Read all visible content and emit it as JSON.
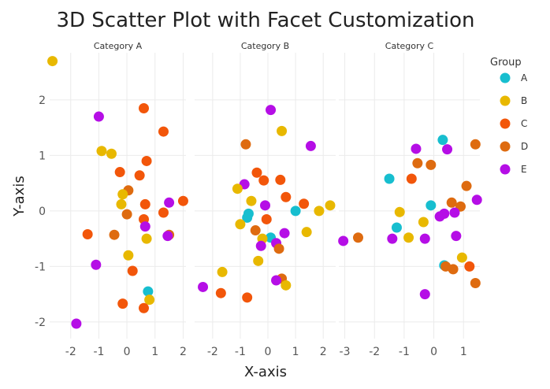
{
  "chart_data": {
    "type": "scatter",
    "title": "3D Scatter Plot with Facet Customization",
    "xlabel": "X-axis",
    "ylabel": "Y-axis",
    "grid": true,
    "legend": {
      "title": "Group",
      "placement": "right"
    },
    "ylim": [
      -2.3,
      2.85
    ],
    "y_ticks": [
      -2,
      -1,
      0,
      1,
      2
    ],
    "colors": {
      "A": "#17becf",
      "B": "#e8b800",
      "C": "#f2560a",
      "D": "#de6b10",
      "E": "#b50ee6"
    },
    "groups": [
      "A",
      "B",
      "C",
      "D",
      "E"
    ],
    "facets": [
      {
        "label": "Category A",
        "xlim": [
          -2.75,
          2.1
        ],
        "x_ticks": [
          -2,
          -1,
          0,
          1,
          2
        ],
        "points": [
          {
            "group": "B",
            "x": -2.65,
            "y": 2.7
          },
          {
            "group": "E",
            "x": -1.0,
            "y": 1.7
          },
          {
            "group": "B",
            "x": -0.9,
            "y": 1.08
          },
          {
            "group": "B",
            "x": -0.55,
            "y": 1.03
          },
          {
            "group": "C",
            "x": 0.6,
            "y": 1.85
          },
          {
            "group": "C",
            "x": 1.3,
            "y": 1.43
          },
          {
            "group": "C",
            "x": 0.7,
            "y": 0.9
          },
          {
            "group": "C",
            "x": -0.25,
            "y": 0.7
          },
          {
            "group": "C",
            "x": 0.45,
            "y": 0.64
          },
          {
            "group": "D",
            "x": 0.05,
            "y": 0.37
          },
          {
            "group": "B",
            "x": -0.15,
            "y": 0.3
          },
          {
            "group": "C",
            "x": 2.0,
            "y": 0.18
          },
          {
            "group": "E",
            "x": 1.5,
            "y": 0.15
          },
          {
            "group": "B",
            "x": -0.2,
            "y": 0.12
          },
          {
            "group": "C",
            "x": 0.65,
            "y": 0.12
          },
          {
            "group": "C",
            "x": 1.3,
            "y": -0.03
          },
          {
            "group": "D",
            "x": 0.0,
            "y": -0.06
          },
          {
            "group": "C",
            "x": 0.6,
            "y": -0.15
          },
          {
            "group": "E",
            "x": 0.65,
            "y": -0.28
          },
          {
            "group": "C",
            "x": -1.4,
            "y": -0.42
          },
          {
            "group": "D",
            "x": -0.45,
            "y": -0.43
          },
          {
            "group": "D",
            "x": 1.5,
            "y": -0.43
          },
          {
            "group": "E",
            "x": 1.45,
            "y": -0.45
          },
          {
            "group": "B",
            "x": 0.7,
            "y": -0.5
          },
          {
            "group": "B",
            "x": 0.05,
            "y": -0.8
          },
          {
            "group": "E",
            "x": -1.1,
            "y": -0.97
          },
          {
            "group": "C",
            "x": 0.2,
            "y": -1.08
          },
          {
            "group": "A",
            "x": 0.75,
            "y": -1.45
          },
          {
            "group": "B",
            "x": 0.8,
            "y": -1.6
          },
          {
            "group": "C",
            "x": -0.15,
            "y": -1.67
          },
          {
            "group": "C",
            "x": 0.6,
            "y": -1.75
          },
          {
            "group": "E",
            "x": -1.8,
            "y": -2.03
          }
        ]
      },
      {
        "label": "Category B",
        "xlim": [
          -2.65,
          2.45
        ],
        "x_ticks": [
          -2,
          -1,
          0,
          1,
          2
        ],
        "points": [
          {
            "group": "E",
            "x": 0.1,
            "y": 1.82
          },
          {
            "group": "B",
            "x": 0.5,
            "y": 1.44
          },
          {
            "group": "D",
            "x": -0.8,
            "y": 1.2
          },
          {
            "group": "E",
            "x": 1.55,
            "y": 1.17
          },
          {
            "group": "C",
            "x": -0.4,
            "y": 0.69
          },
          {
            "group": "C",
            "x": -0.15,
            "y": 0.55
          },
          {
            "group": "C",
            "x": 0.45,
            "y": 0.56
          },
          {
            "group": "E",
            "x": -0.85,
            "y": 0.48
          },
          {
            "group": "B",
            "x": -1.1,
            "y": 0.4
          },
          {
            "group": "C",
            "x": 0.65,
            "y": 0.25
          },
          {
            "group": "B",
            "x": -0.6,
            "y": 0.18
          },
          {
            "group": "C",
            "x": 1.3,
            "y": 0.13
          },
          {
            "group": "B",
            "x": 2.25,
            "y": 0.1
          },
          {
            "group": "E",
            "x": -0.1,
            "y": 0.1
          },
          {
            "group": "A",
            "x": 1.0,
            "y": 0.0
          },
          {
            "group": "B",
            "x": 1.85,
            "y": 0.0
          },
          {
            "group": "A",
            "x": -0.7,
            "y": -0.05
          },
          {
            "group": "A",
            "x": -0.75,
            "y": -0.12
          },
          {
            "group": "C",
            "x": -0.05,
            "y": -0.15
          },
          {
            "group": "B",
            "x": -1.0,
            "y": -0.24
          },
          {
            "group": "D",
            "x": -0.45,
            "y": -0.35
          },
          {
            "group": "B",
            "x": 1.4,
            "y": -0.38
          },
          {
            "group": "E",
            "x": 0.6,
            "y": -0.4
          },
          {
            "group": "A",
            "x": 0.1,
            "y": -0.48
          },
          {
            "group": "B",
            "x": -0.2,
            "y": -0.5
          },
          {
            "group": "E",
            "x": 0.3,
            "y": -0.58
          },
          {
            "group": "E",
            "x": -0.25,
            "y": -0.63
          },
          {
            "group": "D",
            "x": 0.4,
            "y": -0.68
          },
          {
            "group": "B",
            "x": -0.35,
            "y": -0.9
          },
          {
            "group": "B",
            "x": -1.65,
            "y": -1.1
          },
          {
            "group": "D",
            "x": 0.5,
            "y": -1.22
          },
          {
            "group": "E",
            "x": 0.3,
            "y": -1.25
          },
          {
            "group": "B",
            "x": 0.65,
            "y": -1.34
          },
          {
            "group": "E",
            "x": -2.35,
            "y": -1.37
          },
          {
            "group": "C",
            "x": -1.7,
            "y": -1.48
          },
          {
            "group": "C",
            "x": -0.75,
            "y": -1.56
          }
        ]
      },
      {
        "label": "Category C",
        "xlim": [
          -3.2,
          1.55
        ],
        "x_ticks": [
          -3,
          -2,
          -1,
          0,
          1
        ],
        "points": [
          {
            "group": "A",
            "x": 0.3,
            "y": 1.28
          },
          {
            "group": "D",
            "x": 1.4,
            "y": 1.2
          },
          {
            "group": "E",
            "x": -0.6,
            "y": 1.12
          },
          {
            "group": "E",
            "x": 0.45,
            "y": 1.11
          },
          {
            "group": "D",
            "x": -0.55,
            "y": 0.86
          },
          {
            "group": "D",
            "x": -0.1,
            "y": 0.83
          },
          {
            "group": "A",
            "x": -1.5,
            "y": 0.58
          },
          {
            "group": "C",
            "x": -0.75,
            "y": 0.58
          },
          {
            "group": "D",
            "x": 1.1,
            "y": 0.45
          },
          {
            "group": "E",
            "x": 1.45,
            "y": 0.2
          },
          {
            "group": "D",
            "x": 0.6,
            "y": 0.15
          },
          {
            "group": "A",
            "x": -0.1,
            "y": 0.1
          },
          {
            "group": "D",
            "x": 0.9,
            "y": 0.08
          },
          {
            "group": "B",
            "x": -1.15,
            "y": -0.02
          },
          {
            "group": "E",
            "x": 0.7,
            "y": -0.03
          },
          {
            "group": "E",
            "x": 0.35,
            "y": -0.05
          },
          {
            "group": "E",
            "x": 0.2,
            "y": -0.1
          },
          {
            "group": "B",
            "x": -0.35,
            "y": -0.2
          },
          {
            "group": "A",
            "x": -1.25,
            "y": -0.3
          },
          {
            "group": "E",
            "x": 0.75,
            "y": -0.45
          },
          {
            "group": "D",
            "x": -2.55,
            "y": -0.48
          },
          {
            "group": "B",
            "x": -0.85,
            "y": -0.48
          },
          {
            "group": "E",
            "x": -1.4,
            "y": -0.5
          },
          {
            "group": "E",
            "x": -0.3,
            "y": -0.5
          },
          {
            "group": "E",
            "x": -3.05,
            "y": -0.54
          },
          {
            "group": "B",
            "x": 0.95,
            "y": -0.84
          },
          {
            "group": "A",
            "x": 0.35,
            "y": -0.98
          },
          {
            "group": "D",
            "x": 0.4,
            "y": -1.0
          },
          {
            "group": "C",
            "x": 1.2,
            "y": -1.0
          },
          {
            "group": "D",
            "x": 0.65,
            "y": -1.05
          },
          {
            "group": "D",
            "x": 1.4,
            "y": -1.3
          },
          {
            "group": "E",
            "x": -0.3,
            "y": -1.5
          }
        ]
      }
    ]
  }
}
